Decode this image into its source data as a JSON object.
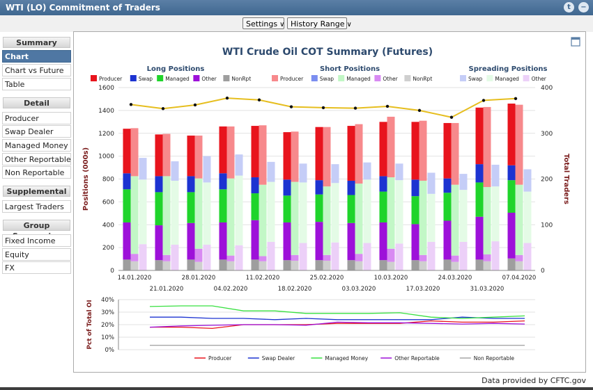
{
  "window": {
    "title": "WTI (LO) Commitment of Traders",
    "twitter_icon": "twitter-icon",
    "close_icon": "close-icon"
  },
  "toolbar": {
    "settings_label": "Settings",
    "history_label": "History Range"
  },
  "sidebar": {
    "sections": [
      {
        "title": "Summary",
        "items": [
          "Chart",
          "Chart vs Future",
          "Table"
        ]
      },
      {
        "title": "Detail",
        "items": [
          "Producer",
          "Swap Dealer",
          "Managed Money",
          "Other Reportable",
          "Non Reportable"
        ]
      },
      {
        "title": "Supplemental",
        "items": [
          "Largest Traders"
        ]
      },
      {
        "title": "Group Summaries",
        "items": [
          "Fixed Income",
          "Equity",
          "FX"
        ]
      }
    ],
    "active_item": "Chart"
  },
  "footer": {
    "credit": "Data provided by CFTC.gov"
  },
  "chart_data": [
    {
      "type": "bar",
      "title": "WTI Crude Oil COT Summary (Futures)",
      "ylabel": "Positions (000s)",
      "y2label": "Total Traders",
      "ylim": [
        0,
        1600
      ],
      "y2lim": [
        0,
        400
      ],
      "yticks": [
        "0",
        "200",
        "400",
        "600",
        "800",
        "1000",
        "1200",
        "1400",
        "1600"
      ],
      "y2ticks": [
        "0",
        "100",
        "200",
        "300",
        "400"
      ],
      "grid": true,
      "categories": [
        "14.01.2020",
        "21.01.2020",
        "28.01.2020",
        "04.02.2020",
        "11.02.2020",
        "18.02.2020",
        "25.02.2020",
        "03.03.2020",
        "10.03.2020",
        "17.03.2020",
        "24.03.2020",
        "31.03.2020",
        "07.04.2020"
      ],
      "legend_groups": [
        {
          "title": "Long Positions",
          "entries": [
            {
              "name": "Producer",
              "color": "#e8141d"
            },
            {
              "name": "Swap",
              "color": "#1c33d1"
            },
            {
              "name": "Managed",
              "color": "#1fd42b"
            },
            {
              "name": "Other",
              "color": "#9d11d9"
            },
            {
              "name": "NonRpt",
              "color": "#9e9e9e"
            }
          ]
        },
        {
          "title": "Short Positions",
          "entries": [
            {
              "name": "Producer",
              "color": "#f7898c"
            },
            {
              "name": "Swap",
              "color": "#7b8ef0"
            },
            {
              "name": "Managed",
              "color": "#c2f7c6"
            },
            {
              "name": "Other",
              "color": "#d88af2"
            },
            {
              "name": "NonRpt",
              "color": "#cfcfcf"
            }
          ]
        },
        {
          "title": "Spreading Positions",
          "entries": [
            {
              "name": "Swap",
              "color": "#c5cdf7"
            },
            {
              "name": "Managed",
              "color": "#e4fbe6"
            },
            {
              "name": "Other",
              "color": "#ecd0f8"
            }
          ]
        }
      ],
      "long_series": [
        {
          "name": "NonRpt",
          "values": [
            95,
            90,
            95,
            95,
            95,
            90,
            90,
            90,
            90,
            90,
            95,
            95,
            105
          ]
        },
        {
          "name": "Other",
          "values": [
            325,
            305,
            320,
            325,
            345,
            330,
            335,
            325,
            330,
            315,
            340,
            375,
            400
          ]
        },
        {
          "name": "Managed",
          "values": [
            290,
            290,
            270,
            290,
            235,
            235,
            240,
            245,
            270,
            245,
            245,
            300,
            285
          ]
        },
        {
          "name": "Swap",
          "values": [
            140,
            140,
            140,
            140,
            140,
            140,
            125,
            125,
            135,
            145,
            125,
            160,
            130
          ]
        },
        {
          "name": "Producer",
          "values": [
            390,
            365,
            355,
            410,
            450,
            415,
            465,
            480,
            475,
            505,
            485,
            495,
            540
          ]
        }
      ],
      "short_series": [
        {
          "name": "NonRpt",
          "values": [
            80,
            80,
            75,
            80,
            80,
            85,
            85,
            80,
            75,
            80,
            75,
            80,
            80
          ]
        },
        {
          "name": "Other",
          "values": [
            65,
            55,
            115,
            50,
            45,
            50,
            50,
            65,
            115,
            55,
            55,
            60,
            55
          ]
        },
        {
          "name": "Managed",
          "values": [
            680,
            690,
            615,
            675,
            625,
            640,
            600,
            615,
            625,
            650,
            620,
            590,
            615
          ]
        },
        {
          "name": "Swap",
          "values": [
            0,
            0,
            0,
            0,
            0,
            0,
            0,
            0,
            0,
            0,
            0,
            0,
            0
          ]
        },
        {
          "name": "Producer",
          "values": [
            420,
            370,
            375,
            455,
            520,
            440,
            520,
            520,
            530,
            525,
            540,
            700,
            700
          ]
        }
      ],
      "spread_series": [
        {
          "name": "Other",
          "values": [
            230,
            225,
            225,
            220,
            250,
            240,
            245,
            240,
            235,
            250,
            250,
            255,
            240
          ]
        },
        {
          "name": "Managed",
          "values": [
            565,
            560,
            545,
            610,
            525,
            530,
            520,
            555,
            555,
            420,
            455,
            480,
            450
          ]
        },
        {
          "name": "Swap",
          "values": [
            190,
            170,
            230,
            185,
            175,
            165,
            165,
            150,
            145,
            185,
            140,
            190,
            195
          ]
        }
      ],
      "total_traders": {
        "name": "Total Traders",
        "color": "#e6be1e",
        "values": [
          363,
          354,
          362,
          377,
          373,
          358,
          356,
          355,
          359,
          350,
          335,
          372,
          376
        ]
      }
    },
    {
      "type": "line",
      "ylabel": "Pct of Total OI",
      "ylim": [
        0,
        40
      ],
      "yticks": [
        "0%",
        "10%",
        "20%",
        "30%",
        "40%"
      ],
      "series": [
        {
          "name": "Producer",
          "color": "#e8141d",
          "values": [
            18,
            18,
            17,
            20,
            20,
            20,
            21,
            21,
            21,
            23,
            22,
            22,
            23
          ]
        },
        {
          "name": "Swap Dealer",
          "color": "#1c33d1",
          "values": [
            26,
            26,
            25,
            25,
            24,
            25,
            24,
            24,
            24,
            24,
            26,
            25,
            25
          ]
        },
        {
          "name": "Managed Money",
          "color": "#38e040",
          "values": [
            34.5,
            35,
            35,
            31,
            31,
            29,
            29,
            29,
            29.5,
            26,
            25,
            26,
            27
          ]
        },
        {
          "name": "Other Reportable",
          "color": "#9d11d9",
          "values": [
            18,
            19,
            19.5,
            20,
            20,
            19.5,
            22,
            21.5,
            21.5,
            21,
            20.5,
            21,
            20.5
          ]
        },
        {
          "name": "Non Reportable",
          "color": "#a6a6a6",
          "values": [
            3.5,
            3.5,
            3.5,
            3.5,
            3.5,
            3.5,
            3.5,
            3.5,
            3.5,
            3.5,
            3.5,
            3.5,
            3.5
          ]
        }
      ]
    }
  ]
}
